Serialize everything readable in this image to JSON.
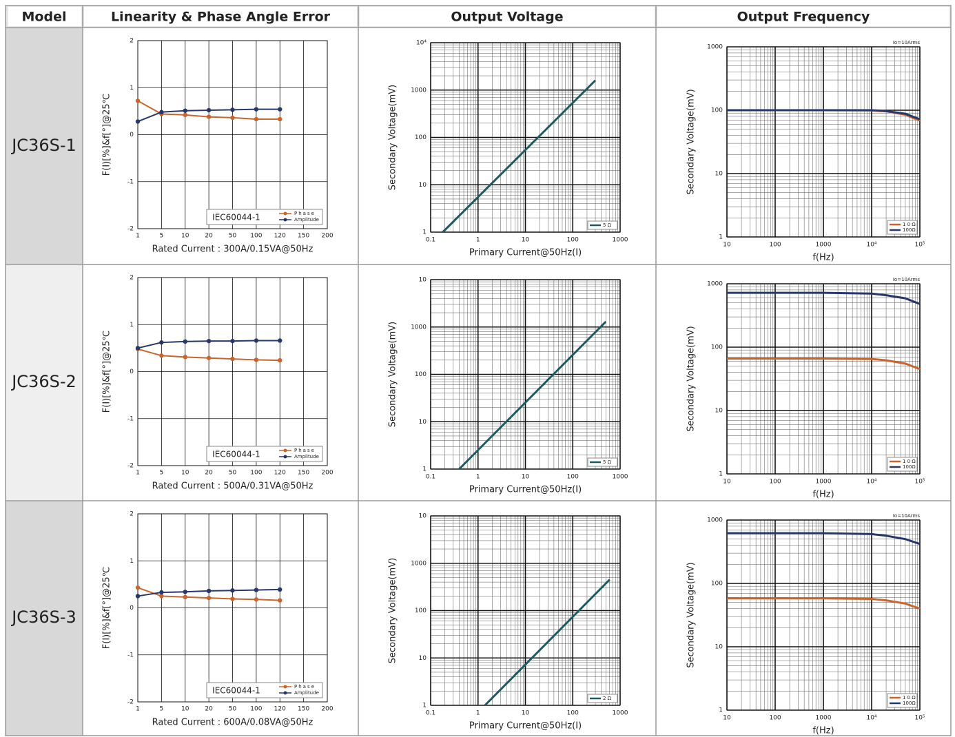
{
  "table": {
    "headers": [
      "Model",
      "Linearity & Phase Angle Error",
      "Output Voltage",
      "Output Frequency"
    ],
    "rows": [
      {
        "model": "JC36S-1"
      },
      {
        "model": "JC36S-2"
      },
      {
        "model": "JC36S-3"
      }
    ]
  },
  "chart_data": [
    {
      "type": "line",
      "categories": [
        "1",
        "5",
        "10",
        "20",
        "50",
        "100",
        "120",
        "150",
        "200"
      ],
      "series": [
        {
          "name": "Phase",
          "color": "#c8642c",
          "values": [
            0.72,
            0.44,
            0.42,
            0.38,
            0.36,
            0.33,
            0.33,
            null,
            null
          ]
        },
        {
          "name": "Amplitude",
          "color": "#27376b",
          "values": [
            0.28,
            0.48,
            0.51,
            0.52,
            0.53,
            0.54,
            0.54,
            null,
            null
          ]
        }
      ],
      "ylim": [
        -2,
        2
      ],
      "yticks": [
        -2,
        -1,
        0,
        1,
        2
      ],
      "grid": true,
      "annotation": "IEC60044-1",
      "x_label": "Rated Current : 300A/0.15VA@50Hz",
      "y_label": "F(I)[%]&f[°]@25℃"
    },
    {
      "type": "line",
      "log_scale": true,
      "x": [
        0.18,
        300
      ],
      "series": [
        {
          "name": "5 Ω",
          "color": "#1e5a62",
          "values": [
            1,
            1600
          ]
        }
      ],
      "xlim": [
        0.1,
        1000
      ],
      "xticks": [
        0.1,
        1,
        10,
        100,
        1000
      ],
      "ylim": [
        1,
        10000
      ],
      "yticks": [
        1,
        10,
        100,
        1000,
        {
          "value": 10000,
          "label": "10⁴"
        }
      ],
      "grid": true,
      "x_label": "Primary Current@50Hz(I)",
      "y_label": "Secondary Voltage(mV)"
    },
    {
      "type": "line",
      "log_scale": true,
      "x": [
        10,
        100,
        1000,
        10000,
        20000,
        50000,
        100000
      ],
      "series": [
        {
          "name": "1 0 Ω",
          "color": "#c8642c",
          "values": [
            100,
            100,
            100,
            99,
            96,
            85,
            68
          ]
        },
        {
          "name": "100Ω",
          "color": "#27376b",
          "values": [
            100,
            100,
            100,
            100,
            97,
            88,
            72
          ]
        }
      ],
      "xlim": [
        10,
        100000
      ],
      "xticks": [
        10,
        100,
        1000,
        {
          "value": 10000,
          "label": "10⁴"
        },
        {
          "value": 100000,
          "label": "10⁵"
        }
      ],
      "ylim": [
        1,
        1000
      ],
      "yticks": [
        1,
        10,
        100,
        1000
      ],
      "grid": true,
      "annotation": "Io=10Arms",
      "x_label": "f(Hz)",
      "y_label": "Secondary Voltage(mV)"
    },
    {
      "type": "line",
      "categories": [
        "1",
        "5",
        "10",
        "20",
        "50",
        "100",
        "120",
        "150",
        "200"
      ],
      "series": [
        {
          "name": "Phase",
          "color": "#c8642c",
          "values": [
            0.48,
            0.34,
            0.31,
            0.29,
            0.27,
            0.25,
            0.24,
            null,
            null
          ]
        },
        {
          "name": "Amplitude",
          "color": "#27376b",
          "values": [
            0.5,
            0.62,
            0.64,
            0.65,
            0.65,
            0.66,
            0.66,
            null,
            null
          ]
        }
      ],
      "ylim": [
        -2,
        2
      ],
      "yticks": [
        -2,
        -1,
        0,
        1,
        2
      ],
      "grid": true,
      "annotation": "IEC60044-1",
      "x_label": "Rated Current : 500A/0.31VA@50Hz",
      "y_label": "F(I)[%]&f[°]@25℃"
    },
    {
      "type": "line",
      "log_scale": true,
      "x": [
        0.4,
        500
      ],
      "series": [
        {
          "name": "5 Ω",
          "color": "#1e5a62",
          "values": [
            1,
            1300
          ]
        }
      ],
      "xlim": [
        0.1,
        1000
      ],
      "xticks": [
        0.1,
        1,
        10,
        100,
        1000
      ],
      "ylim": [
        1,
        10000
      ],
      "yticks": [
        1,
        10,
        100,
        1000,
        {
          "value": 10000,
          "label": "10"
        }
      ],
      "grid": true,
      "x_label": "Primary Current@50Hz(I)",
      "y_label": "Secondary Voltage(mV)"
    },
    {
      "type": "line",
      "log_scale": true,
      "x": [
        10,
        100,
        1000,
        10000,
        20000,
        50000,
        100000
      ],
      "series": [
        {
          "name": "1 0 Ω",
          "color": "#c8642c",
          "values": [
            66,
            66,
            66,
            65,
            62,
            55,
            45
          ]
        },
        {
          "name": "100Ω",
          "color": "#27376b",
          "values": [
            720,
            720,
            720,
            700,
            660,
            590,
            480
          ]
        }
      ],
      "xlim": [
        10,
        100000
      ],
      "xticks": [
        10,
        100,
        1000,
        {
          "value": 10000,
          "label": "10⁴"
        },
        {
          "value": 100000,
          "label": "10⁵"
        }
      ],
      "ylim": [
        1,
        1000
      ],
      "yticks": [
        1,
        10,
        100,
        1000
      ],
      "grid": true,
      "annotation": "Io=10Arms",
      "x_label": "f(Hz)",
      "y_label": "Secondary Voltage(mV)"
    },
    {
      "type": "line",
      "categories": [
        "1",
        "5",
        "10",
        "20",
        "50",
        "100",
        "120",
        "150",
        "200"
      ],
      "series": [
        {
          "name": "Phase",
          "color": "#c8642c",
          "values": [
            0.43,
            0.25,
            0.23,
            0.21,
            0.19,
            0.18,
            0.16,
            null,
            null
          ]
        },
        {
          "name": "Amplitude",
          "color": "#27376b",
          "values": [
            0.25,
            0.33,
            0.34,
            0.36,
            0.37,
            0.38,
            0.39,
            null,
            null
          ]
        }
      ],
      "ylim": [
        -2,
        2
      ],
      "yticks": [
        -2,
        -1,
        0,
        1,
        2
      ],
      "grid": true,
      "annotation": "IEC60044-1",
      "x_label": "Rated Current : 600A/0.08VA@50Hz",
      "y_label": "F(I)[%]&f[°]@25℃"
    },
    {
      "type": "line",
      "log_scale": true,
      "x": [
        1.4,
        600
      ],
      "series": [
        {
          "name": "2 Ω",
          "color": "#1e5a62",
          "values": [
            1,
            450
          ]
        }
      ],
      "xlim": [
        0.1,
        1000
      ],
      "xticks": [
        0.1,
        1,
        10,
        100,
        1000
      ],
      "ylim": [
        1,
        10000
      ],
      "yticks": [
        1,
        10,
        100,
        1000,
        {
          "value": 10000,
          "label": "10"
        }
      ],
      "grid": true,
      "x_label": "Primary Current@50Hz(I)",
      "y_label": "Secondary Voltage(mV)"
    },
    {
      "type": "line",
      "log_scale": true,
      "x": [
        10,
        100,
        1000,
        10000,
        20000,
        50000,
        100000
      ],
      "series": [
        {
          "name": "1 0 Ω",
          "color": "#c8642c",
          "values": [
            58,
            58,
            58,
            57,
            54,
            48,
            40
          ]
        },
        {
          "name": "100Ω",
          "color": "#27376b",
          "values": [
            620,
            620,
            620,
            600,
            565,
            500,
            420
          ]
        }
      ],
      "xlim": [
        10,
        100000
      ],
      "xticks": [
        10,
        100,
        1000,
        {
          "value": 10000,
          "label": "10⁴"
        },
        {
          "value": 100000,
          "label": "10⁵"
        }
      ],
      "ylim": [
        1,
        1000
      ],
      "yticks": [
        1,
        10,
        100,
        1000
      ],
      "grid": true,
      "annotation": "Io=10Arms",
      "x_label": "f(Hz)",
      "y_label": "Secondary Voltage(mV)"
    }
  ]
}
